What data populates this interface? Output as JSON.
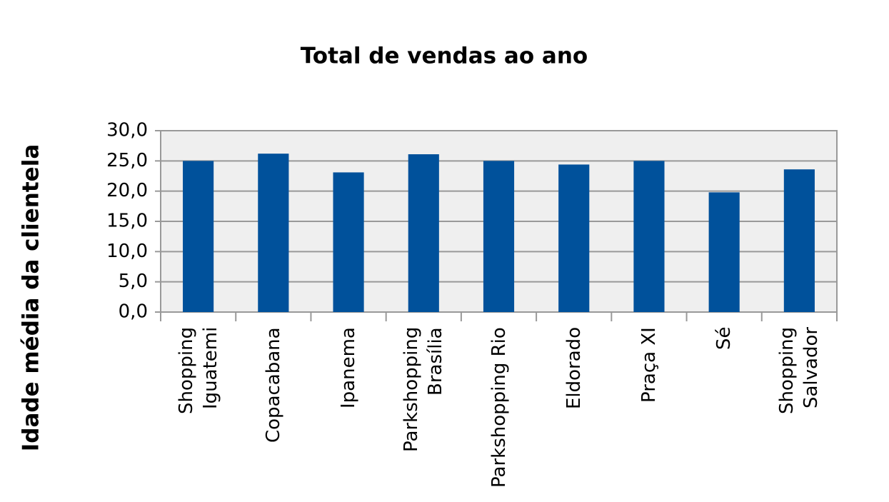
{
  "chart_data": {
    "type": "bar",
    "title": "Total de vendas ao ano",
    "y_label": "Idade média da clientela",
    "categories": [
      "Shopping Iguatemi",
      "Copacabana",
      "Ipanema",
      "Parkshopping Brasília",
      "Parkshopping Rio",
      "Eldorado",
      "Praça XI",
      "Sé",
      "Shopping Salvador"
    ],
    "values": [
      25.0,
      26.2,
      23.1,
      26.1,
      25.0,
      24.4,
      25.0,
      19.8,
      23.6
    ],
    "color": "#00519b",
    "ylim": [
      0,
      30
    ],
    "yticks": [
      {
        "value": 0,
        "label": "0,0"
      },
      {
        "value": 5,
        "label": "5,0"
      },
      {
        "value": 10,
        "label": "10,0"
      },
      {
        "value": 15,
        "label": "15,0"
      },
      {
        "value": 20,
        "label": "20,0"
      },
      {
        "value": 25,
        "label": "25,0"
      },
      {
        "value": 30,
        "label": "30,0"
      }
    ],
    "grid": true
  }
}
